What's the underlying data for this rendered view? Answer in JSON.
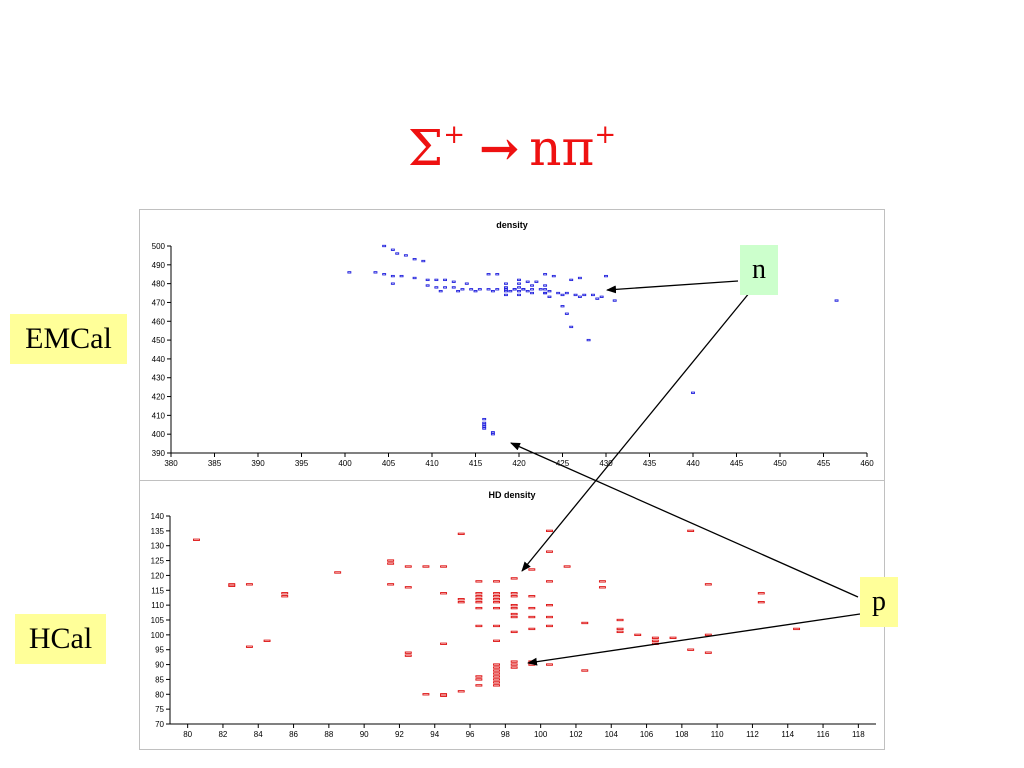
{
  "title": {
    "main": "Σ",
    "sup1": "+",
    "arrow": "→",
    "product": "nπ",
    "sup2": "+"
  },
  "labels": {
    "emcal": "EMCal",
    "hcal": "HCal",
    "n": "n",
    "p": "p"
  },
  "colors": {
    "title": "#ee1111",
    "emcal_marks": "#2222dd",
    "hcal_marks": "#dd1111",
    "label_yellow": "#ffff99",
    "label_green": "#ccffcc"
  },
  "chart_data": [
    {
      "type": "scatter",
      "title": "density",
      "xlabel": "",
      "ylabel": "",
      "xlim": [
        380,
        460
      ],
      "ylim": [
        390,
        500
      ],
      "xticks": [
        380,
        385,
        390,
        395,
        400,
        405,
        410,
        415,
        420,
        425,
        430,
        435,
        440,
        445,
        450,
        455,
        460
      ],
      "yticks": [
        390,
        400,
        410,
        420,
        430,
        440,
        450,
        460,
        470,
        480,
        490,
        500
      ],
      "grid": false,
      "points": [
        [
          404.5,
          500
        ],
        [
          405.5,
          498
        ],
        [
          406,
          496
        ],
        [
          407,
          495
        ],
        [
          408,
          493
        ],
        [
          409,
          492
        ],
        [
          400.5,
          486
        ],
        [
          403.5,
          486
        ],
        [
          404.5,
          485
        ],
        [
          405.5,
          484
        ],
        [
          406.5,
          484
        ],
        [
          408,
          483
        ],
        [
          409.5,
          482
        ],
        [
          410.5,
          482
        ],
        [
          411.5,
          482
        ],
        [
          412.5,
          481
        ],
        [
          414,
          480
        ],
        [
          405.5,
          480
        ],
        [
          409.5,
          479
        ],
        [
          410.5,
          478
        ],
        [
          411.5,
          478
        ],
        [
          412.5,
          478
        ],
        [
          413.5,
          477
        ],
        [
          414.5,
          477
        ],
        [
          415.5,
          477
        ],
        [
          416.5,
          477
        ],
        [
          417.5,
          477
        ],
        [
          418.5,
          477
        ],
        [
          419.5,
          477
        ],
        [
          420.5,
          477
        ],
        [
          421.5,
          477
        ],
        [
          422.5,
          477
        ],
        [
          423.5,
          476
        ],
        [
          424.5,
          475
        ],
        [
          425.5,
          475
        ],
        [
          426.5,
          474
        ],
        [
          427.5,
          474
        ],
        [
          428.5,
          474
        ],
        [
          429.5,
          473
        ],
        [
          411,
          476
        ],
        [
          413,
          476
        ],
        [
          415,
          476
        ],
        [
          417,
          476
        ],
        [
          419,
          476
        ],
        [
          421,
          476
        ],
        [
          423,
          475
        ],
        [
          425,
          474
        ],
        [
          427,
          473
        ],
        [
          429,
          472
        ],
        [
          431,
          471
        ],
        [
          416.5,
          485
        ],
        [
          417.5,
          485
        ],
        [
          420,
          482
        ],
        [
          421,
          481
        ],
        [
          422,
          481
        ],
        [
          423,
          485
        ],
        [
          424,
          484
        ],
        [
          426,
          482
        ],
        [
          427,
          483
        ],
        [
          430,
          484
        ],
        [
          420,
          480
        ],
        [
          420,
          478
        ],
        [
          420,
          476
        ],
        [
          420,
          474
        ],
        [
          419.5,
          477
        ],
        [
          420.5,
          477
        ],
        [
          418.5,
          480
        ],
        [
          418.5,
          478
        ],
        [
          418.5,
          476
        ],
        [
          418.5,
          474
        ],
        [
          421.5,
          479
        ],
        [
          421.5,
          475
        ],
        [
          423,
          479
        ],
        [
          423,
          477
        ],
        [
          423,
          475
        ],
        [
          423.5,
          473
        ],
        [
          425,
          468
        ],
        [
          425.5,
          464
        ],
        [
          426,
          457
        ],
        [
          428,
          450
        ],
        [
          440,
          422
        ],
        [
          456.5,
          471
        ],
        [
          416,
          408
        ],
        [
          416,
          406
        ],
        [
          416,
          405
        ],
        [
          416,
          404
        ],
        [
          416,
          403
        ],
        [
          417,
          401
        ],
        [
          417,
          400
        ]
      ]
    },
    {
      "type": "scatter",
      "title": "HD density",
      "xlabel": "",
      "ylabel": "",
      "xlim": [
        79,
        119
      ],
      "ylim": [
        70,
        140
      ],
      "xticks": [
        80,
        82,
        84,
        86,
        88,
        90,
        92,
        94,
        96,
        98,
        100,
        102,
        104,
        106,
        108,
        110,
        112,
        114,
        116,
        118
      ],
      "yticks": [
        70,
        75,
        80,
        85,
        90,
        95,
        100,
        105,
        110,
        115,
        120,
        125,
        130,
        135,
        140
      ],
      "grid": false,
      "points": [
        [
          80.5,
          132
        ],
        [
          82.5,
          117
        ],
        [
          82.5,
          116.5
        ],
        [
          83.5,
          117
        ],
        [
          83.5,
          96
        ],
        [
          84.5,
          98
        ],
        [
          85.5,
          114
        ],
        [
          85.5,
          113
        ],
        [
          88.5,
          121
        ],
        [
          91.5,
          125
        ],
        [
          91.5,
          124
        ],
        [
          91.5,
          117
        ],
        [
          92.5,
          123
        ],
        [
          92.5,
          116
        ],
        [
          92.5,
          94
        ],
        [
          92.5,
          93
        ],
        [
          93.5,
          123
        ],
        [
          93.5,
          80
        ],
        [
          94.5,
          123
        ],
        [
          94.5,
          114
        ],
        [
          94.5,
          97
        ],
        [
          94.5,
          80
        ],
        [
          94.5,
          79.5
        ],
        [
          95.5,
          134
        ],
        [
          95.5,
          112
        ],
        [
          95.5,
          111
        ],
        [
          95.5,
          81
        ],
        [
          96.5,
          118
        ],
        [
          96.5,
          114
        ],
        [
          96.5,
          113
        ],
        [
          96.5,
          112
        ],
        [
          96.5,
          111
        ],
        [
          96.5,
          109
        ],
        [
          96.5,
          103
        ],
        [
          96.5,
          86
        ],
        [
          96.5,
          85
        ],
        [
          96.5,
          83
        ],
        [
          97.5,
          118
        ],
        [
          97.5,
          114
        ],
        [
          97.5,
          113
        ],
        [
          97.5,
          112
        ],
        [
          97.5,
          111
        ],
        [
          97.5,
          109
        ],
        [
          97.5,
          103
        ],
        [
          97.5,
          98
        ],
        [
          97.5,
          90
        ],
        [
          97.5,
          89
        ],
        [
          97.5,
          88
        ],
        [
          97.5,
          87
        ],
        [
          97.5,
          86
        ],
        [
          97.5,
          85
        ],
        [
          97.5,
          84
        ],
        [
          97.5,
          83
        ],
        [
          98.5,
          119
        ],
        [
          98.5,
          114
        ],
        [
          98.5,
          113
        ],
        [
          98.5,
          110
        ],
        [
          98.5,
          109
        ],
        [
          98.5,
          107
        ],
        [
          98.5,
          106
        ],
        [
          98.5,
          101
        ],
        [
          98.5,
          91
        ],
        [
          98.5,
          90
        ],
        [
          98.5,
          89
        ],
        [
          99.5,
          122
        ],
        [
          99.5,
          113
        ],
        [
          99.5,
          109
        ],
        [
          99.5,
          106
        ],
        [
          99.5,
          102
        ],
        [
          99.5,
          91
        ],
        [
          99.5,
          90
        ],
        [
          100.5,
          135
        ],
        [
          100.5,
          128
        ],
        [
          100.5,
          118
        ],
        [
          100.5,
          110
        ],
        [
          100.5,
          106
        ],
        [
          100.5,
          103
        ],
        [
          100.5,
          90
        ],
        [
          101.5,
          123
        ],
        [
          102.5,
          104
        ],
        [
          102.5,
          88
        ],
        [
          103.5,
          118
        ],
        [
          103.5,
          116
        ],
        [
          104.5,
          105
        ],
        [
          104.5,
          102
        ],
        [
          104.5,
          101
        ],
        [
          105.5,
          100
        ],
        [
          106.5,
          99
        ],
        [
          106.5,
          98
        ],
        [
          106.5,
          97
        ],
        [
          107.5,
          99
        ],
        [
          108.5,
          135
        ],
        [
          108.5,
          95
        ],
        [
          109.5,
          117
        ],
        [
          109.5,
          100
        ],
        [
          109.5,
          94
        ],
        [
          112.5,
          114
        ],
        [
          112.5,
          111
        ],
        [
          114.5,
          102
        ]
      ]
    }
  ]
}
